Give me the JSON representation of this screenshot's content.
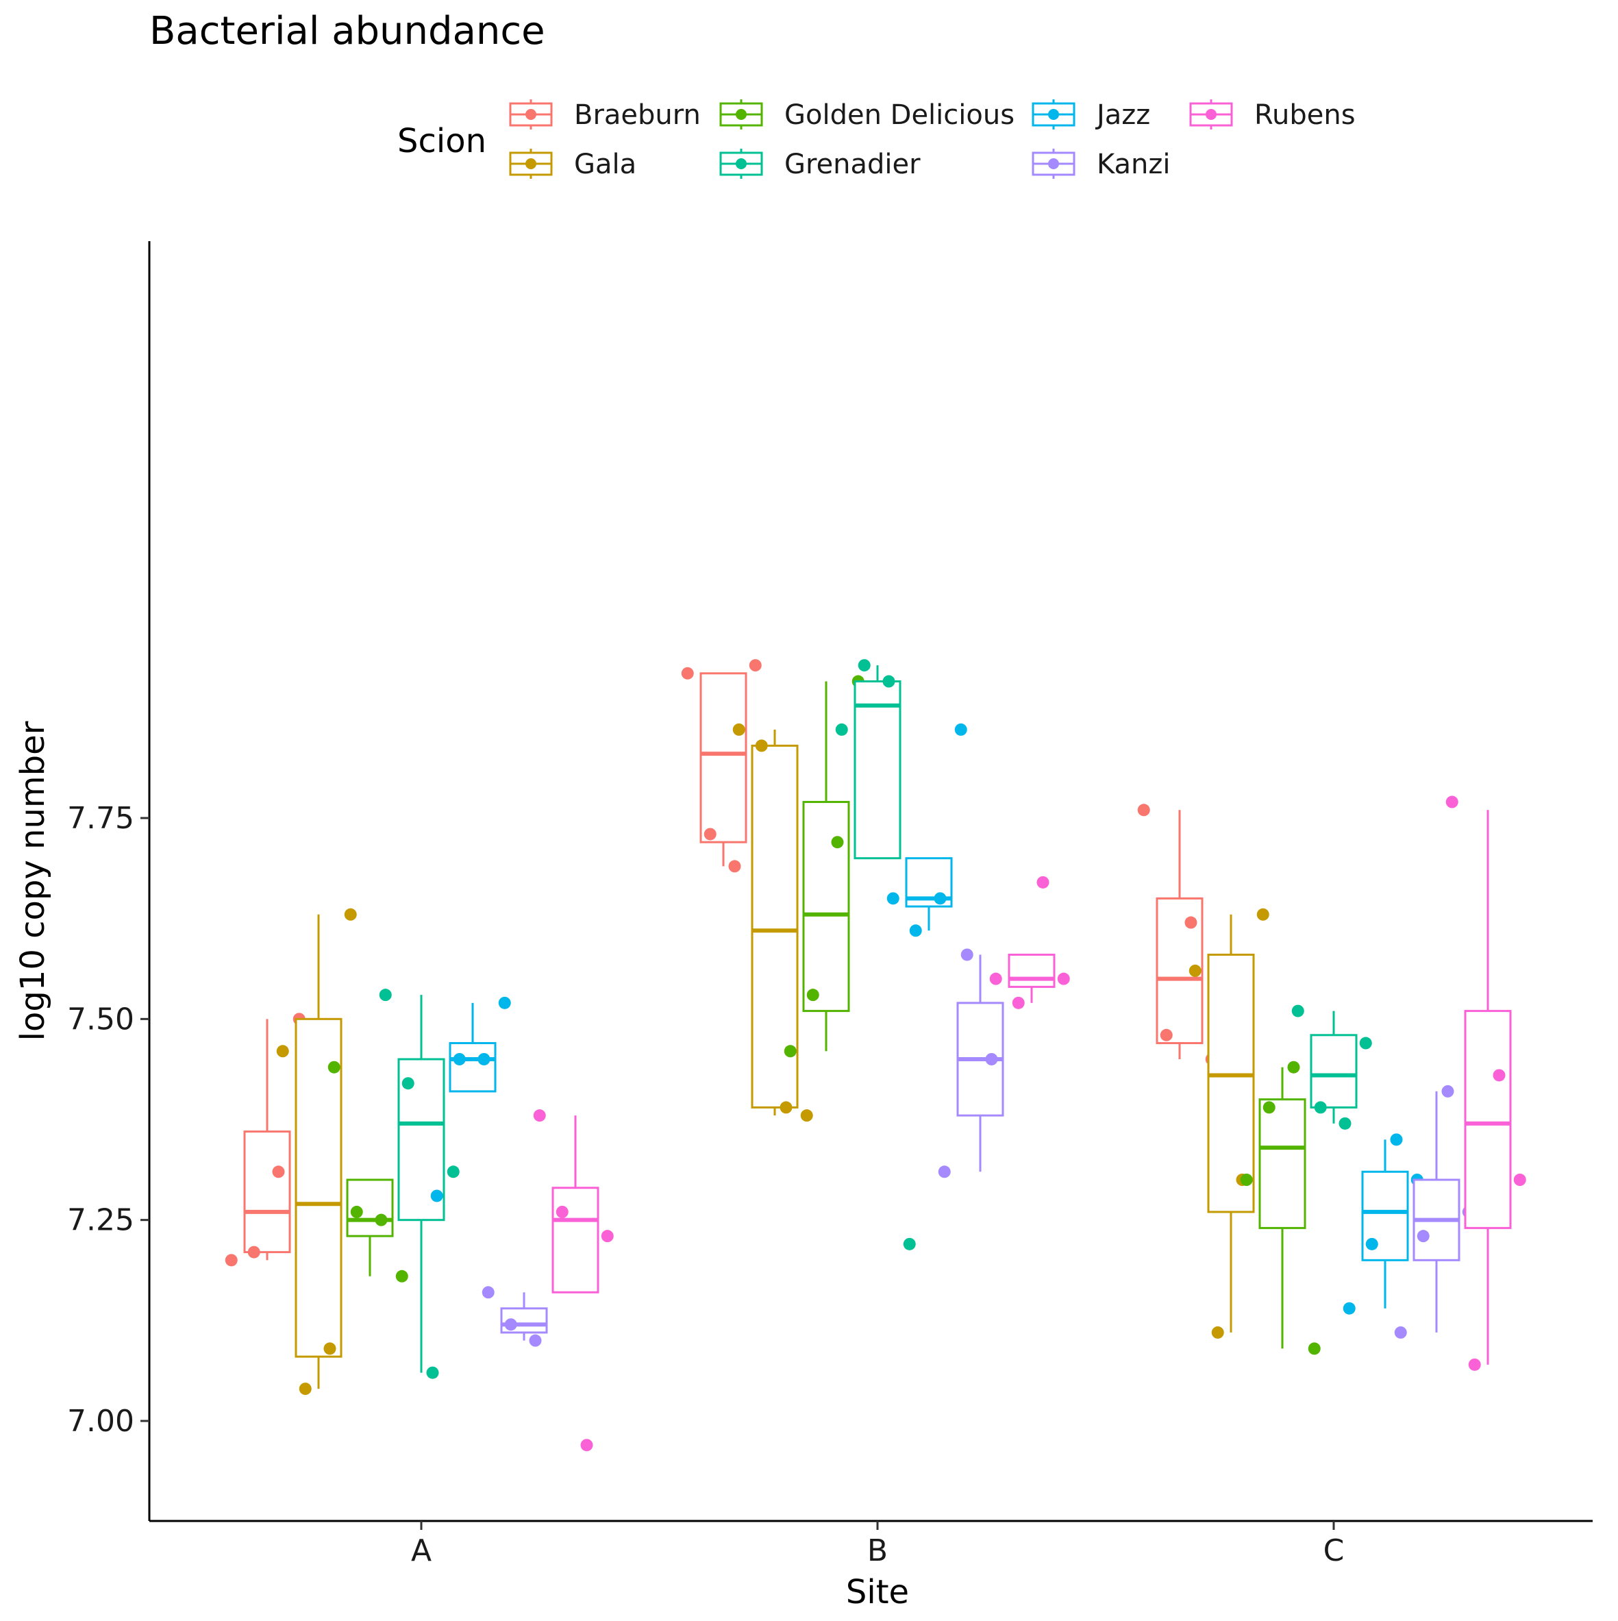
{
  "chart_data": {
    "type": "box",
    "title": "Bacterial abundance",
    "xlabel": "Site",
    "ylabel": "log10 copy number",
    "categories": [
      "A",
      "B",
      "C"
    ],
    "ylim": [
      6.92,
      7.98
    ],
    "yticks": [
      7.0,
      7.25,
      7.5,
      7.75
    ],
    "ytick_labels": [
      "7.00",
      "7.25",
      "7.50",
      "7.75"
    ],
    "grid": false,
    "legend": {
      "title": "Scion",
      "position": "top"
    },
    "series": [
      {
        "name": "Braeburn",
        "color": "#F8766D",
        "boxes": [
          {
            "site": "A",
            "min": 7.2,
            "q1": 7.21,
            "median": 7.26,
            "q3": 7.36,
            "max": 7.5
          },
          {
            "site": "B",
            "min": 7.69,
            "q1": 7.72,
            "median": 7.83,
            "q3": 7.93,
            "max": 7.93
          },
          {
            "site": "C",
            "min": 7.45,
            "q1": 7.47,
            "median": 7.55,
            "q3": 7.65,
            "max": 7.76
          }
        ],
        "points": [
          {
            "site": "A",
            "values": [
              7.2,
              7.21,
              7.31,
              7.5
            ]
          },
          {
            "site": "B",
            "values": [
              7.93,
              7.73,
              7.69,
              7.94
            ]
          },
          {
            "site": "C",
            "values": [
              7.76,
              7.48,
              7.62,
              7.45
            ]
          }
        ]
      },
      {
        "name": "Gala",
        "color": "#C49A00",
        "boxes": [
          {
            "site": "A",
            "min": 7.04,
            "q1": 7.08,
            "median": 7.27,
            "q3": 7.5,
            "max": 7.63
          },
          {
            "site": "B",
            "min": 7.38,
            "q1": 7.39,
            "median": 7.61,
            "q3": 7.84,
            "max": 7.86
          },
          {
            "site": "C",
            "min": 7.11,
            "q1": 7.26,
            "median": 7.43,
            "q3": 7.58,
            "max": 7.63
          }
        ],
        "points": [
          {
            "site": "A",
            "values": [
              7.46,
              7.04,
              7.09,
              7.63
            ]
          },
          {
            "site": "B",
            "values": [
              7.86,
              7.84,
              7.39,
              7.38
            ]
          },
          {
            "site": "C",
            "values": [
              7.56,
              7.11,
              7.3,
              7.63
            ]
          }
        ]
      },
      {
        "name": "Golden Delicious",
        "color": "#53B400",
        "boxes": [
          {
            "site": "A",
            "min": 7.18,
            "q1": 7.23,
            "median": 7.25,
            "q3": 7.3,
            "max": 7.3
          },
          {
            "site": "B",
            "min": 7.46,
            "q1": 7.51,
            "median": 7.63,
            "q3": 7.77,
            "max": 7.92
          },
          {
            "site": "C",
            "min": 7.09,
            "q1": 7.24,
            "median": 7.34,
            "q3": 7.4,
            "max": 7.44
          }
        ],
        "points": [
          {
            "site": "A",
            "values": [
              7.44,
              7.26,
              7.25,
              7.18
            ]
          },
          {
            "site": "B",
            "values": [
              7.46,
              7.53,
              7.72,
              7.92
            ]
          },
          {
            "site": "C",
            "values": [
              7.3,
              7.39,
              7.44,
              7.09
            ]
          }
        ]
      },
      {
        "name": "Grenadier",
        "color": "#00C094",
        "boxes": [
          {
            "site": "A",
            "min": 7.06,
            "q1": 7.25,
            "median": 7.37,
            "q3": 7.45,
            "max": 7.53
          },
          {
            "site": "B",
            "min": 7.7,
            "q1": 7.7,
            "median": 7.89,
            "q3": 7.92,
            "max": 7.94
          },
          {
            "site": "C",
            "min": 7.37,
            "q1": 7.39,
            "median": 7.43,
            "q3": 7.48,
            "max": 7.51
          }
        ],
        "points": [
          {
            "site": "A",
            "values": [
              7.53,
              7.42,
              7.06,
              7.31
            ]
          },
          {
            "site": "B",
            "values": [
              7.86,
              7.94,
              7.92,
              7.22
            ]
          },
          {
            "site": "C",
            "values": [
              7.51,
              7.39,
              7.37,
              7.47
            ]
          }
        ]
      },
      {
        "name": "Jazz",
        "color": "#00B6EB",
        "boxes": [
          {
            "site": "A",
            "min": 7.41,
            "q1": 7.41,
            "median": 7.45,
            "q3": 7.47,
            "max": 7.52
          },
          {
            "site": "B",
            "min": 7.61,
            "q1": 7.64,
            "median": 7.65,
            "q3": 7.7,
            "max": 7.7
          },
          {
            "site": "C",
            "min": 7.14,
            "q1": 7.2,
            "median": 7.26,
            "q3": 7.31,
            "max": 7.35
          }
        ],
        "points": [
          {
            "site": "A",
            "values": [
              7.28,
              7.45,
              7.45,
              7.52
            ]
          },
          {
            "site": "B",
            "values": [
              7.65,
              7.61,
              7.65,
              7.86
            ]
          },
          {
            "site": "C",
            "values": [
              7.14,
              7.22,
              7.35,
              7.3
            ]
          }
        ]
      },
      {
        "name": "Kanzi",
        "color": "#A58AFF",
        "boxes": [
          {
            "site": "A",
            "min": 7.1,
            "q1": 7.11,
            "median": 7.12,
            "q3": 7.14,
            "max": 7.16
          },
          {
            "site": "B",
            "min": 7.31,
            "q1": 7.38,
            "median": 7.45,
            "q3": 7.52,
            "max": 7.58
          },
          {
            "site": "C",
            "min": 7.11,
            "q1": 7.2,
            "median": 7.25,
            "q3": 7.3,
            "max": 7.41
          }
        ],
        "points": [
          {
            "site": "A",
            "values": [
              7.16,
              7.12,
              7.1
            ]
          },
          {
            "site": "B",
            "values": [
              7.31,
              7.58,
              7.45
            ]
          },
          {
            "site": "C",
            "values": [
              7.11,
              7.23,
              7.41,
              7.26
            ]
          }
        ]
      },
      {
        "name": "Rubens",
        "color": "#FB61D7",
        "boxes": [
          {
            "site": "A",
            "min": 7.16,
            "q1": 7.16,
            "median": 7.25,
            "q3": 7.29,
            "max": 7.38
          },
          {
            "site": "B",
            "min": 7.52,
            "q1": 7.54,
            "median": 7.55,
            "q3": 7.58,
            "max": 7.58
          },
          {
            "site": "C",
            "min": 7.07,
            "q1": 7.24,
            "median": 7.37,
            "q3": 7.51,
            "max": 7.76
          }
        ],
        "points": [
          {
            "site": "A",
            "values": [
              7.38,
              7.26,
              6.97,
              7.23
            ]
          },
          {
            "site": "B",
            "values": [
              7.55,
              7.52,
              7.67,
              7.55
            ]
          },
          {
            "site": "C",
            "values": [
              7.77,
              7.07,
              7.43,
              7.3
            ]
          }
        ]
      }
    ]
  }
}
